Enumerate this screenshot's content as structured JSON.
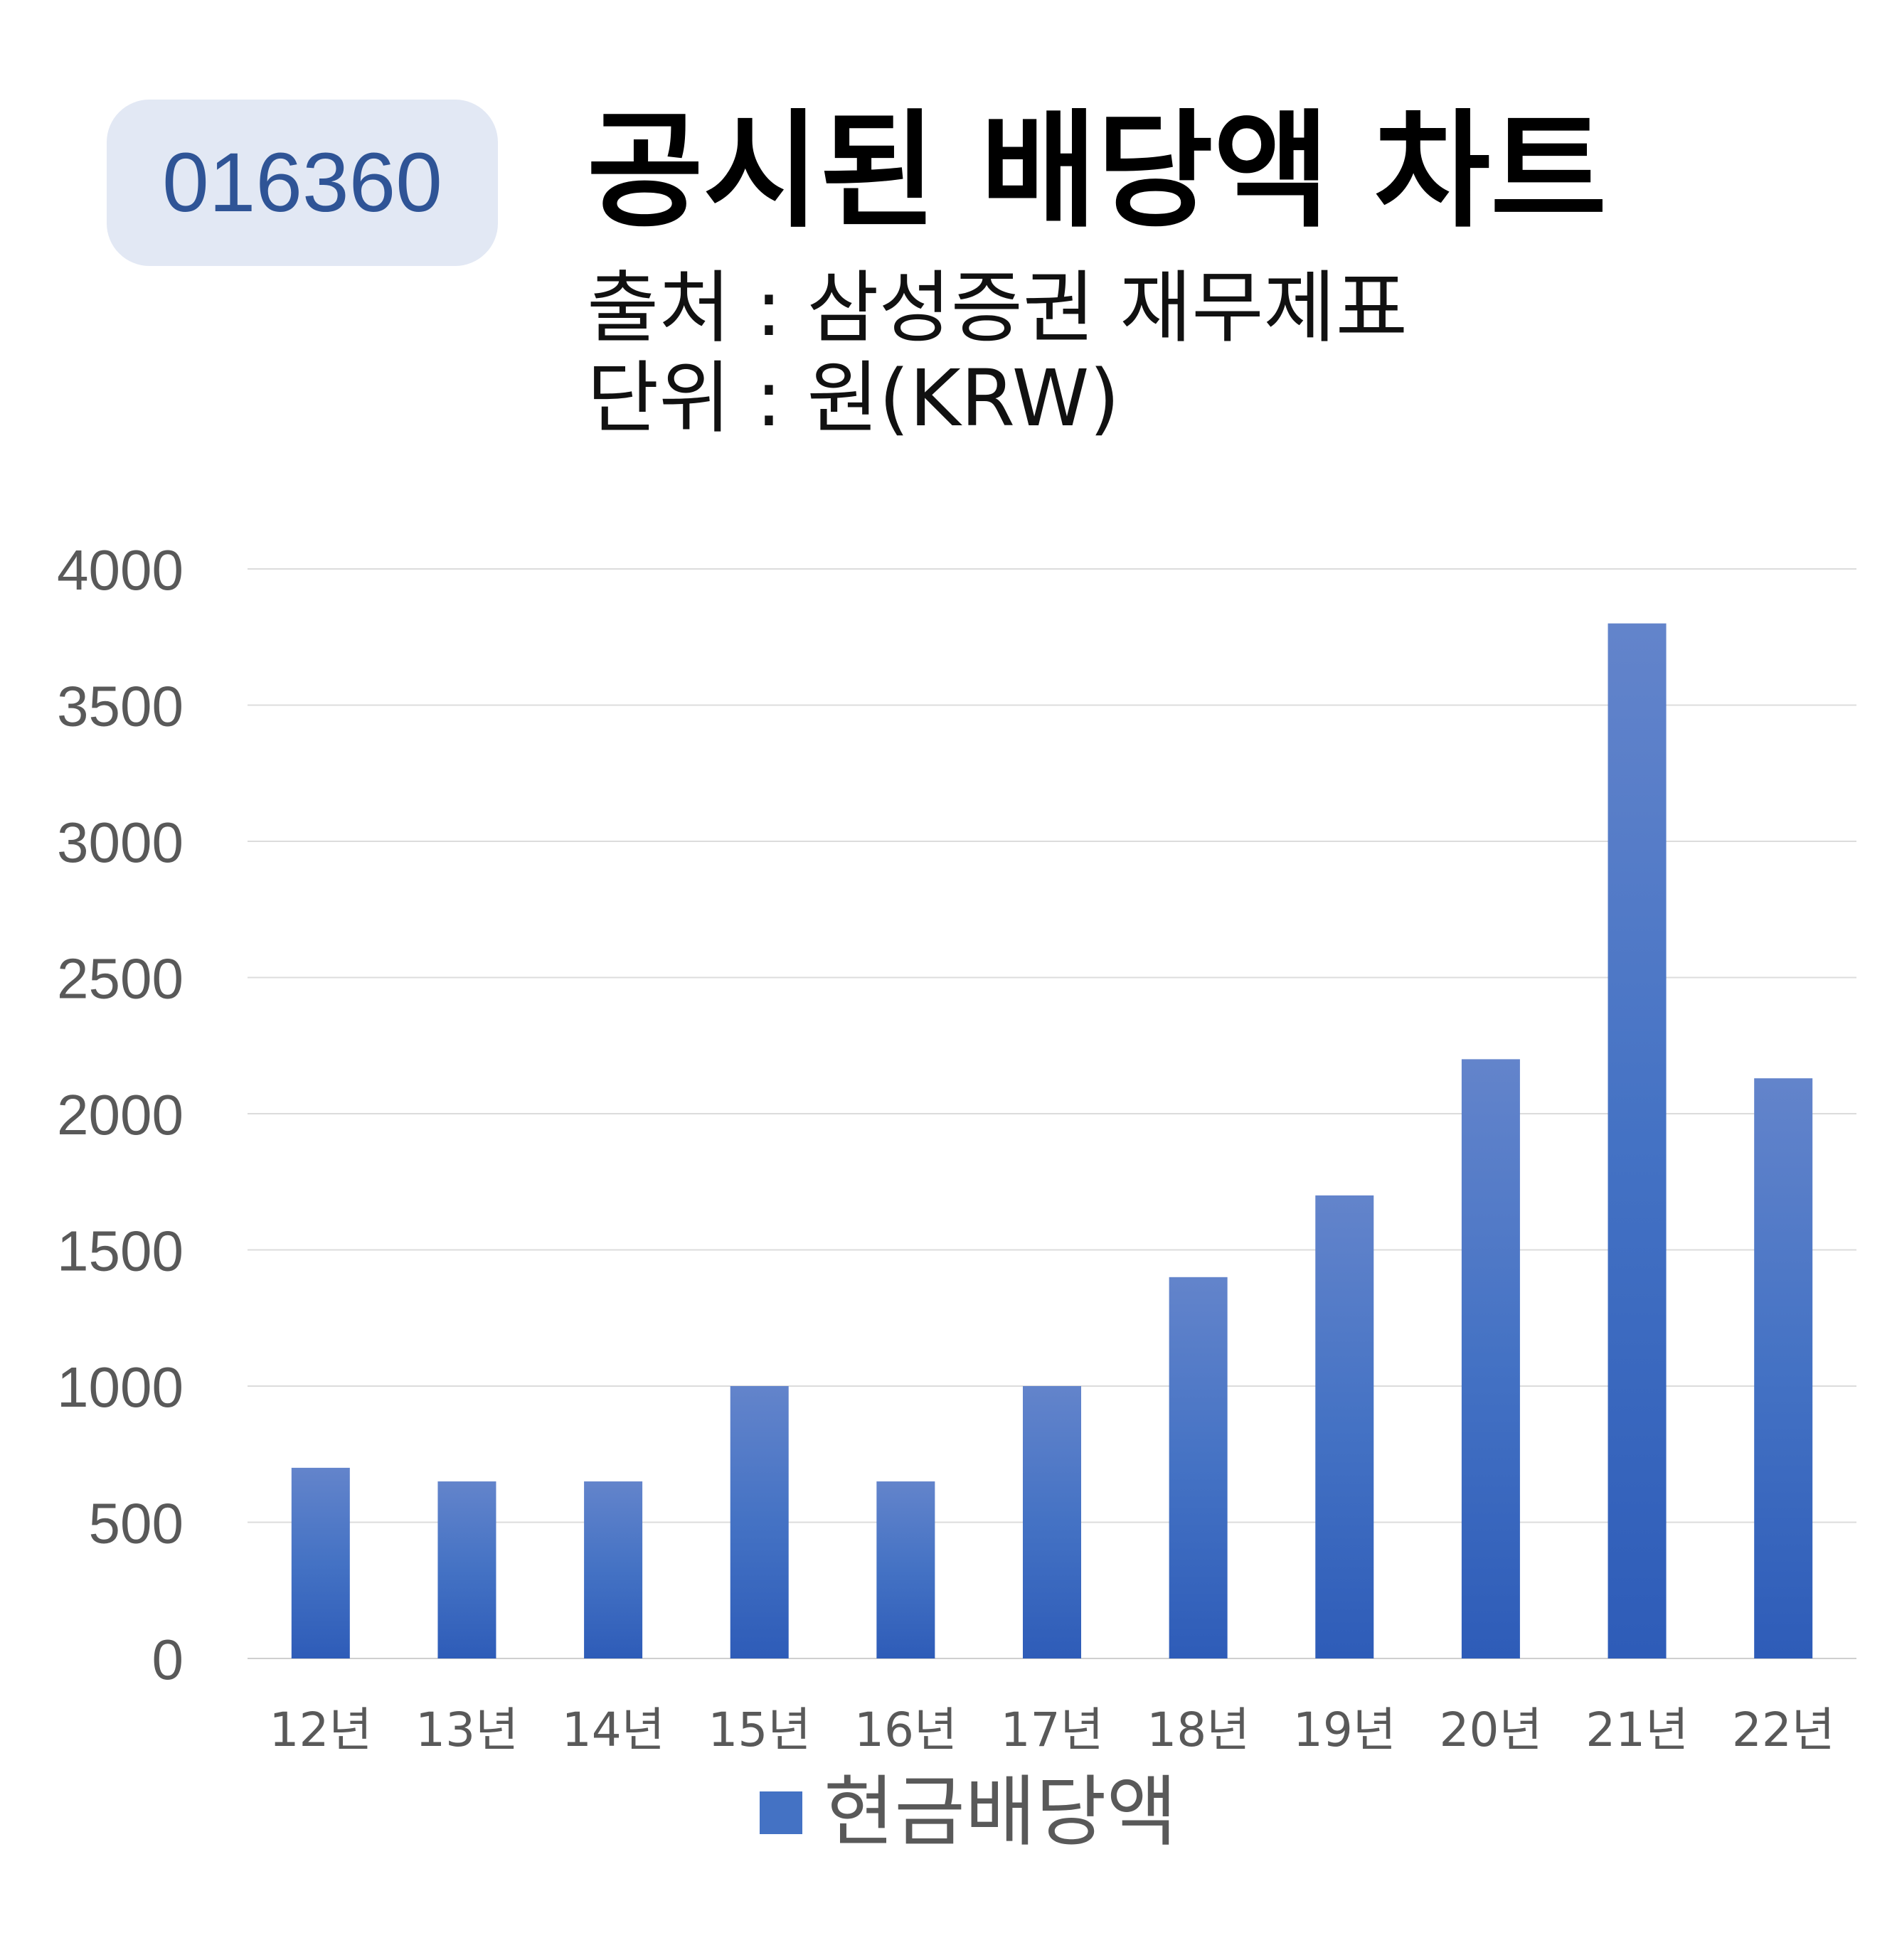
{
  "header": {
    "code": "016360",
    "title": "공시된 배당액 차트",
    "source": "출처 : 삼성증권 재무제표",
    "unit": "단위 : 원(KRW)"
  },
  "chart_data": {
    "type": "bar",
    "categories": [
      "12년",
      "13년",
      "14년",
      "15년",
      "16년",
      "17년",
      "18년",
      "19년",
      "20년",
      "21년",
      "22년"
    ],
    "series": [
      {
        "name": "현금배당액",
        "values": [
          700,
          650,
          650,
          1000,
          650,
          1000,
          1400,
          1700,
          2200,
          3800,
          2130
        ],
        "color": "#4472c4"
      }
    ],
    "yticks": [
      "0",
      "500",
      "1000",
      "1500",
      "2000",
      "2500",
      "3000",
      "3500",
      "4000"
    ],
    "ylim": [
      0,
      4000
    ],
    "grid": true,
    "legend": "bottom"
  }
}
